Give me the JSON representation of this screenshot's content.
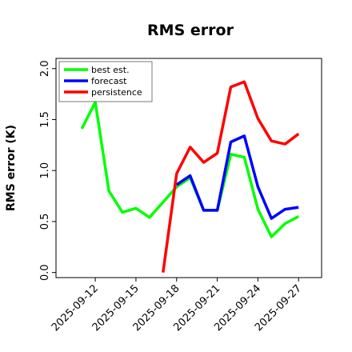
{
  "chart_data": {
    "type": "line",
    "title": "RMS error",
    "xlabel": "",
    "ylabel": "RMS error (K)",
    "ylim": [
      -0.05,
      2.1
    ],
    "yticks": [
      0.0,
      0.5,
      1.0,
      1.5,
      2.0
    ],
    "ytick_labels": [
      "0.0",
      "0.5",
      "1.0",
      "1.5",
      "2.0"
    ],
    "x_start_index": 0,
    "x_end_index": 17,
    "xticks": [
      {
        "index": 2,
        "label": "2025-09-12"
      },
      {
        "index": 5,
        "label": "2025-09-15"
      },
      {
        "index": 8,
        "label": "2025-09-18",
        "highlight": true
      },
      {
        "index": 11,
        "label": "2025-09-21"
      },
      {
        "index": 14,
        "label": "2025-09-24"
      },
      {
        "index": 17,
        "label": "2025-09-27"
      }
    ],
    "tick_highlight_color": "#228B22",
    "legend_position": "top-left",
    "series": [
      {
        "name": "best est.",
        "color": "#00ff00",
        "x": [
          1,
          2,
          3,
          4,
          5,
          6,
          7,
          8,
          9,
          10,
          11,
          12,
          13,
          14,
          15,
          16,
          17
        ],
        "y": [
          1.41,
          1.67,
          0.8,
          0.59,
          0.63,
          0.54,
          0.69,
          0.84,
          0.93,
          0.61,
          0.61,
          1.16,
          1.13,
          0.62,
          0.35,
          0.48,
          0.55
        ]
      },
      {
        "name": "forecast",
        "color": "#0000ff",
        "x": [
          8,
          9,
          10,
          11,
          12,
          13,
          14,
          15,
          16,
          17
        ],
        "y": [
          0.86,
          0.95,
          0.61,
          0.61,
          1.28,
          1.34,
          0.84,
          0.53,
          0.62,
          0.64
        ]
      },
      {
        "name": "persistence",
        "color": "#ff0000",
        "x": [
          7,
          8,
          9,
          10,
          11,
          12,
          13,
          14,
          15,
          16,
          17
        ],
        "y": [
          0.0,
          0.97,
          1.23,
          1.08,
          1.17,
          1.82,
          1.87,
          1.51,
          1.29,
          1.26,
          1.36
        ]
      }
    ]
  }
}
